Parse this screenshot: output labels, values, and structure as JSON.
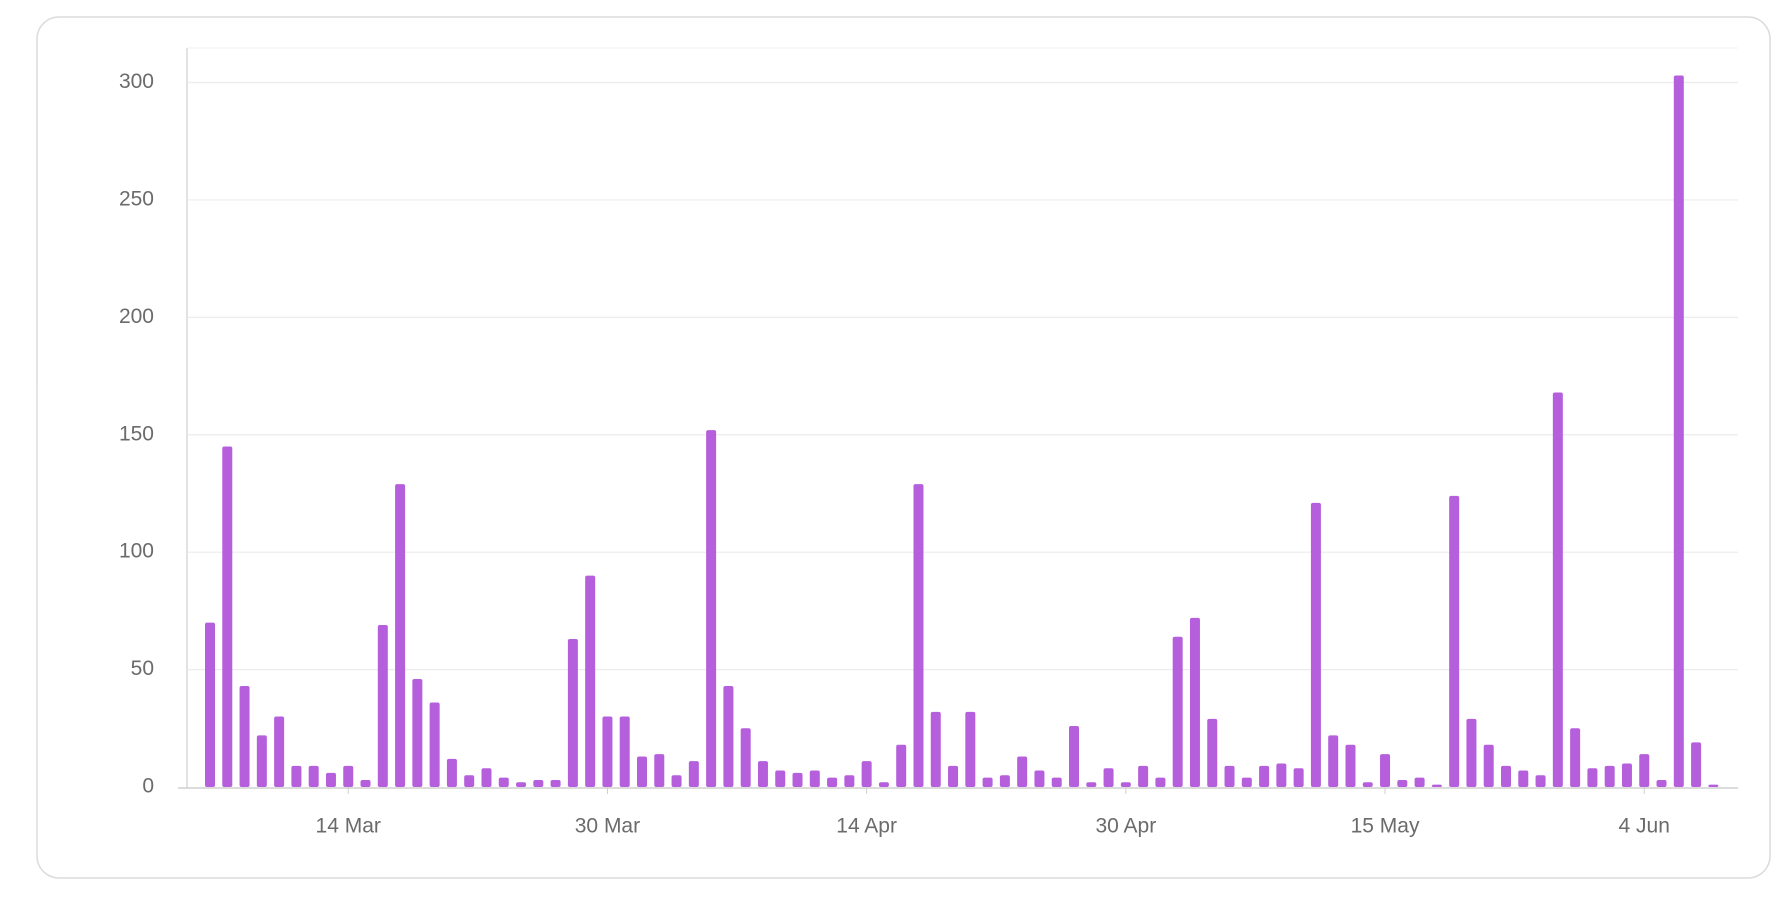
{
  "chart_data": {
    "type": "bar",
    "color": "#b55fdc",
    "categories": [
      null,
      null,
      null,
      null,
      null,
      null,
      null,
      null,
      "14 Mar",
      null,
      null,
      null,
      null,
      null,
      null,
      null,
      null,
      null,
      null,
      null,
      null,
      null,
      null,
      "30 Mar",
      null,
      null,
      null,
      null,
      null,
      null,
      null,
      null,
      null,
      null,
      null,
      null,
      null,
      null,
      "14 Apr",
      null,
      null,
      null,
      null,
      null,
      null,
      null,
      null,
      null,
      null,
      null,
      null,
      null,
      null,
      "30 Apr",
      null,
      null,
      null,
      null,
      null,
      null,
      null,
      null,
      null,
      null,
      null,
      null,
      null,
      null,
      "15 May",
      null,
      null,
      null,
      null,
      null,
      null,
      null,
      null,
      null,
      null,
      null,
      null,
      null,
      null,
      "4 Jun",
      null,
      null,
      null,
      null
    ],
    "values": [
      70,
      145,
      43,
      22,
      30,
      9,
      9,
      6,
      9,
      3,
      69,
      129,
      46,
      36,
      12,
      5,
      8,
      4,
      2,
      3,
      3,
      63,
      90,
      30,
      30,
      13,
      14,
      5,
      11,
      152,
      43,
      25,
      11,
      7,
      6,
      7,
      4,
      5,
      11,
      2,
      18,
      129,
      32,
      9,
      32,
      4,
      5,
      13,
      7,
      4,
      26,
      2,
      8,
      2,
      9,
      4,
      64,
      72,
      29,
      9,
      4,
      9,
      10,
      8,
      121,
      22,
      18,
      2,
      14,
      3,
      4,
      1,
      124,
      29,
      18,
      9,
      7,
      5,
      168,
      25,
      8,
      9,
      10,
      14,
      3,
      303,
      19,
      1
    ],
    "ylim": [
      0,
      313
    ],
    "yticks": [
      0,
      50,
      100,
      150,
      200,
      250,
      300
    ],
    "grid": true
  }
}
